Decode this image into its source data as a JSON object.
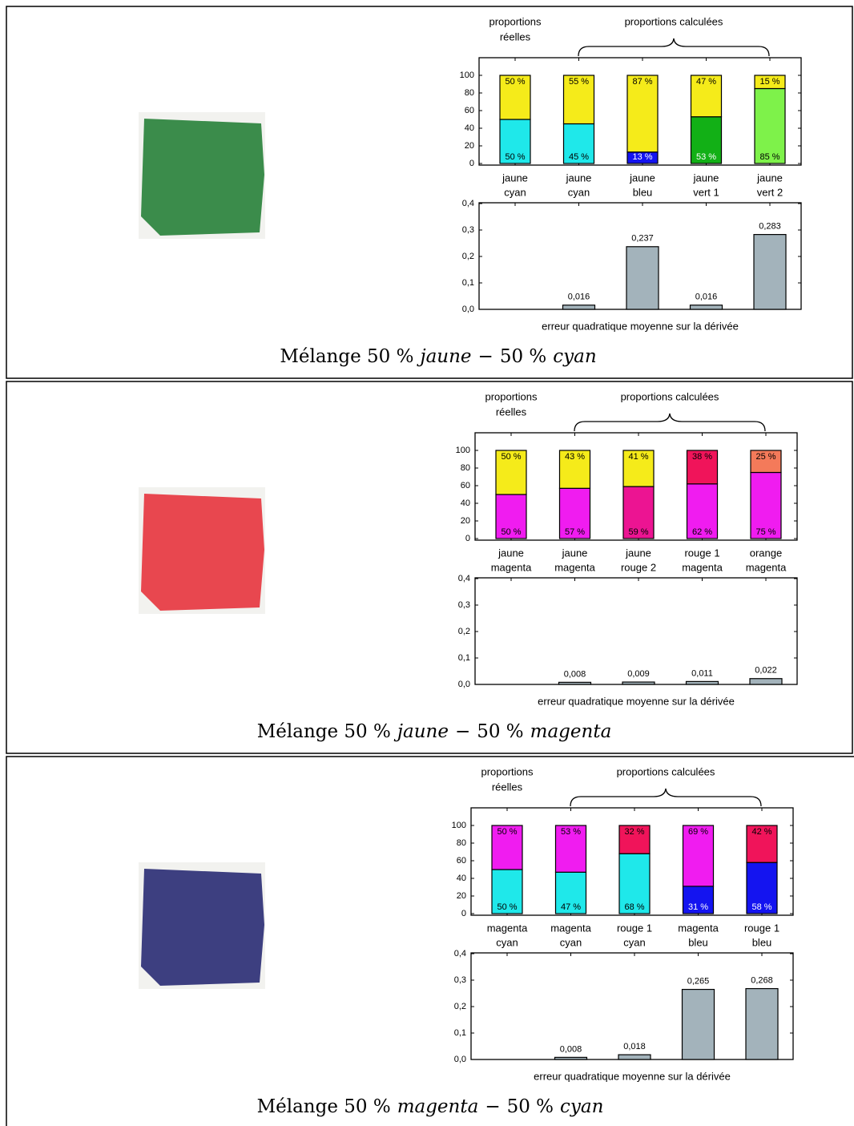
{
  "panels": [
    {
      "swatch_color": "#3b8c4b",
      "header": {
        "real": [
          "proportions",
          "réelles"
        ],
        "computed": "proportions calculées"
      },
      "caption": {
        "prefix": "Mélange 50 %",
        "first": "jaune",
        "dash": "−",
        "mid": "50 %",
        "second": "cyan"
      },
      "chart_data": [
        {
          "type": "stacked",
          "ylim": [
            0,
            100
          ],
          "yticks": [
            0,
            20,
            40,
            60,
            80,
            100
          ],
          "bars": [
            {
              "labels": [
                "jaune",
                "cyan"
              ],
              "segments": [
                {
                  "value": 50,
                  "value_label": "50 %",
                  "color": "#1fe8ea",
                  "label_color": "#000"
                },
                {
                  "value": 50,
                  "value_label": "50 %",
                  "color": "#f5eb1a",
                  "label_color": "#000"
                }
              ]
            },
            {
              "labels": [
                "jaune",
                "cyan"
              ],
              "segments": [
                {
                  "value": 45,
                  "value_label": "45 %",
                  "color": "#1fe8ea",
                  "label_color": "#000"
                },
                {
                  "value": 55,
                  "value_label": "55 %",
                  "color": "#f5eb1a",
                  "label_color": "#000"
                }
              ]
            },
            {
              "labels": [
                "jaune",
                "bleu"
              ],
              "segments": [
                {
                  "value": 13,
                  "value_label": "13 %",
                  "color": "#1414f0",
                  "label_color": "#fff"
                },
                {
                  "value": 87,
                  "value_label": "87 %",
                  "color": "#f5eb1a",
                  "label_color": "#000"
                }
              ]
            },
            {
              "labels": [
                "jaune",
                "vert 1"
              ],
              "segments": [
                {
                  "value": 53,
                  "value_label": "53 %",
                  "color": "#12b016",
                  "label_color": "#fff"
                },
                {
                  "value": 47,
                  "value_label": "47 %",
                  "color": "#f5eb1a",
                  "label_color": "#000"
                }
              ]
            },
            {
              "labels": [
                "jaune",
                "vert 2"
              ],
              "segments": [
                {
                  "value": 85,
                  "value_label": "85 %",
                  "color": "#7ef24a",
                  "label_color": "#000"
                },
                {
                  "value": 15,
                  "value_label": "15 %",
                  "color": "#f5eb1a",
                  "label_color": "#000"
                }
              ]
            }
          ]
        },
        {
          "type": "bar",
          "ylim": [
            0,
            0.4
          ],
          "color": "#a3b3bb",
          "x_label": "erreur quadratique moyenne sur la dérivée",
          "yticks": [
            {
              "value": 0,
              "label": "0,0"
            },
            {
              "value": 0.1,
              "label": "0,1"
            },
            {
              "value": 0.2,
              "label": "0,2"
            },
            {
              "value": 0.3,
              "label": "0,3"
            },
            {
              "value": 0.4,
              "label": "0,4"
            }
          ],
          "values": [
            null,
            0.016,
            0.237,
            0.016,
            0.283
          ],
          "value_labels": [
            null,
            "0,016",
            "0,237",
            "0,016",
            "0,283"
          ]
        }
      ]
    },
    {
      "swatch_color": "#e8474f",
      "header": {
        "real": [
          "proportions",
          "réelles"
        ],
        "computed": "proportions calculées"
      },
      "caption": {
        "prefix": "Mélange 50 %",
        "first": "jaune",
        "dash": "−",
        "mid": "50 %",
        "second": "magenta"
      },
      "chart_data": [
        {
          "type": "stacked",
          "ylim": [
            0,
            100
          ],
          "yticks": [
            0,
            20,
            40,
            60,
            80,
            100
          ],
          "bars": [
            {
              "labels": [
                "jaune",
                "magenta"
              ],
              "segments": [
                {
                  "value": 50,
                  "value_label": "50 %",
                  "color": "#f01cf0",
                  "label_color": "#000"
                },
                {
                  "value": 50,
                  "value_label": "50 %",
                  "color": "#f5eb1a",
                  "label_color": "#000"
                }
              ]
            },
            {
              "labels": [
                "jaune",
                "magenta"
              ],
              "segments": [
                {
                  "value": 57,
                  "value_label": "57 %",
                  "color": "#f01cf0",
                  "label_color": "#000"
                },
                {
                  "value": 43,
                  "value_label": "43 %",
                  "color": "#f5eb1a",
                  "label_color": "#000"
                }
              ]
            },
            {
              "labels": [
                "jaune",
                "rouge 2"
              ],
              "segments": [
                {
                  "value": 59,
                  "value_label": "59 %",
                  "color": "#ec1492",
                  "label_color": "#000"
                },
                {
                  "value": 41,
                  "value_label": "41 %",
                  "color": "#f5eb1a",
                  "label_color": "#000"
                }
              ]
            },
            {
              "labels": [
                "rouge 1",
                "magenta"
              ],
              "segments": [
                {
                  "value": 62,
                  "value_label": "62 %",
                  "color": "#f01cf0",
                  "label_color": "#000"
                },
                {
                  "value": 38,
                  "value_label": "38 %",
                  "color": "#f0145a",
                  "label_color": "#000"
                }
              ]
            },
            {
              "labels": [
                "orange",
                "magenta"
              ],
              "segments": [
                {
                  "value": 75,
                  "value_label": "75 %",
                  "color": "#f01cf0",
                  "label_color": "#000"
                },
                {
                  "value": 25,
                  "value_label": "25 %",
                  "color": "#f47a5a",
                  "label_color": "#000"
                }
              ]
            }
          ]
        },
        {
          "type": "bar",
          "ylim": [
            0,
            0.4
          ],
          "color": "#a3b3bb",
          "x_label": "erreur quadratique moyenne sur la dérivée",
          "yticks": [
            {
              "value": 0,
              "label": "0,0"
            },
            {
              "value": 0.1,
              "label": "0,1"
            },
            {
              "value": 0.2,
              "label": "0,2"
            },
            {
              "value": 0.3,
              "label": "0,3"
            },
            {
              "value": 0.4,
              "label": "0,4"
            }
          ],
          "values": [
            null,
            0.008,
            0.009,
            0.011,
            0.022
          ],
          "value_labels": [
            null,
            "0,008",
            "0,009",
            "0,011",
            "0,022"
          ]
        }
      ]
    },
    {
      "swatch_color": "#3d3f80",
      "header": {
        "real": [
          "proportions",
          "réelles"
        ],
        "computed": "proportions calculées"
      },
      "caption": {
        "prefix": "Mélange 50 %",
        "first": "magenta",
        "dash": "−",
        "mid": "50 %",
        "second": "cyan"
      },
      "chart_data": [
        {
          "type": "stacked",
          "ylim": [
            0,
            100
          ],
          "yticks": [
            0,
            20,
            40,
            60,
            80,
            100
          ],
          "bars": [
            {
              "labels": [
                "magenta",
                "cyan"
              ],
              "segments": [
                {
                  "value": 50,
                  "value_label": "50 %",
                  "color": "#1fe8ea",
                  "label_color": "#000"
                },
                {
                  "value": 50,
                  "value_label": "50 %",
                  "color": "#f01cf0",
                  "label_color": "#000"
                }
              ]
            },
            {
              "labels": [
                "magenta",
                "cyan"
              ],
              "segments": [
                {
                  "value": 47,
                  "value_label": "47 %",
                  "color": "#1fe8ea",
                  "label_color": "#000"
                },
                {
                  "value": 53,
                  "value_label": "53 %",
                  "color": "#f01cf0",
                  "label_color": "#000"
                }
              ]
            },
            {
              "labels": [
                "rouge 1",
                "cyan"
              ],
              "segments": [
                {
                  "value": 68,
                  "value_label": "68 %",
                  "color": "#1fe8ea",
                  "label_color": "#000"
                },
                {
                  "value": 32,
                  "value_label": "32 %",
                  "color": "#f0145a",
                  "label_color": "#000"
                }
              ]
            },
            {
              "labels": [
                "magenta",
                "bleu"
              ],
              "segments": [
                {
                  "value": 31,
                  "value_label": "31 %",
                  "color": "#1414f0",
                  "label_color": "#fff"
                },
                {
                  "value": 69,
                  "value_label": "69 %",
                  "color": "#f01cf0",
                  "label_color": "#000"
                }
              ]
            },
            {
              "labels": [
                "rouge 1",
                "bleu"
              ],
              "segments": [
                {
                  "value": 58,
                  "value_label": "58 %",
                  "color": "#1414f0",
                  "label_color": "#fff"
                },
                {
                  "value": 42,
                  "value_label": "42 %",
                  "color": "#f0145a",
                  "label_color": "#000"
                }
              ]
            }
          ]
        },
        {
          "type": "bar",
          "ylim": [
            0,
            0.4
          ],
          "color": "#a3b3bb",
          "x_label": "erreur quadratique moyenne sur la dérivée",
          "yticks": [
            {
              "value": 0,
              "label": "0,0"
            },
            {
              "value": 0.1,
              "label": "0,1"
            },
            {
              "value": 0.2,
              "label": "0,2"
            },
            {
              "value": 0.3,
              "label": "0,3"
            },
            {
              "value": 0.4,
              "label": "0,4"
            }
          ],
          "values": [
            null,
            0.008,
            0.018,
            0.265,
            0.268
          ],
          "value_labels": [
            null,
            "0,008",
            "0,018",
            "0,265",
            "0,268"
          ]
        }
      ]
    }
  ]
}
